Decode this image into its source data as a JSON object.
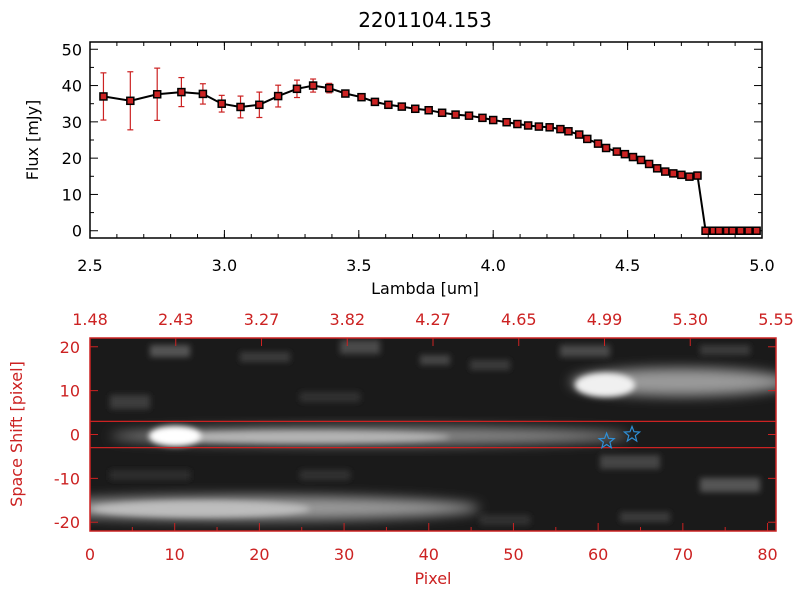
{
  "title": "2201104.153",
  "colors": {
    "red": "#cc2222",
    "axis": "#000000",
    "blue": "#2f8fd6"
  },
  "chart_data": [
    {
      "type": "line",
      "title": "2201104.153",
      "xlabel": "Lambda [um]",
      "ylabel": "Flux [mJy]",
      "xlim": [
        2.5,
        5.0
      ],
      "ylim": [
        -2,
        52
      ],
      "xticks": [
        "2.5",
        "3.0",
        "3.5",
        "4.0",
        "4.5",
        "5.0"
      ],
      "yticks": [
        "0",
        "10",
        "20",
        "30",
        "40",
        "50"
      ],
      "series": [
        {
          "name": "flux",
          "x": [
            2.55,
            2.65,
            2.75,
            2.84,
            2.92,
            2.99,
            3.06,
            3.13,
            3.2,
            3.27,
            3.33,
            3.39,
            3.45,
            3.51,
            3.56,
            3.61,
            3.66,
            3.71,
            3.76,
            3.81,
            3.86,
            3.91,
            3.96,
            4.0,
            4.05,
            4.09,
            4.13,
            4.17,
            4.21,
            4.25,
            4.28,
            4.32,
            4.35,
            4.39,
            4.42,
            4.46,
            4.49,
            4.52,
            4.55,
            4.58,
            4.61,
            4.64,
            4.67,
            4.7,
            4.73,
            4.76,
            4.79,
            4.82,
            4.84,
            4.87,
            4.89,
            4.92,
            4.95,
            4.98
          ],
          "values": [
            37.0,
            35.8,
            37.6,
            38.2,
            37.7,
            35.0,
            34.1,
            34.7,
            37.1,
            39.1,
            40.0,
            39.3,
            37.8,
            36.8,
            35.5,
            34.7,
            34.2,
            33.6,
            33.2,
            32.5,
            32.0,
            31.7,
            31.1,
            30.5,
            29.9,
            29.4,
            29.0,
            28.7,
            28.5,
            28.0,
            27.4,
            26.5,
            25.3,
            24.0,
            22.8,
            21.8,
            21.1,
            20.3,
            19.5,
            18.4,
            17.2,
            16.3,
            15.8,
            15.4,
            14.9,
            15.2,
            0.0,
            0.0,
            0.0,
            0.0,
            0.0,
            0.0,
            0.0,
            0.0
          ],
          "errors": [
            6.5,
            8.0,
            7.2,
            4.0,
            2.8,
            2.3,
            3.0,
            3.5,
            3.0,
            2.4,
            1.8,
            1.3,
            0.9,
            0.8,
            0.8,
            0.8,
            0.8,
            0.8,
            0.8,
            0.8,
            0.8,
            0.8,
            0.8,
            0.8,
            0.8,
            0.8,
            0.8,
            0.8,
            0.8,
            0.8,
            0.8,
            0.8,
            0.8,
            0.8,
            0.8,
            0.8,
            0.8,
            0.8,
            0.8,
            0.8,
            0.8,
            0.8,
            0.8,
            0.8,
            0.8,
            0.8,
            0.8,
            0.8,
            0.8,
            0.8,
            0.8,
            0.8,
            0.8,
            0.8
          ]
        }
      ]
    },
    {
      "type": "heatmap",
      "xlabel": "Pixel",
      "ylabel": "Space Shift [pixel]",
      "xlim": [
        0,
        81
      ],
      "ylim": [
        -22,
        22
      ],
      "xticks": [
        "0",
        "10",
        "20",
        "30",
        "40",
        "50",
        "60",
        "70",
        "80"
      ],
      "yticks": [
        "-20",
        "-10",
        "0",
        "10",
        "20"
      ],
      "top_axis_labels": [
        "1.48",
        "2.43",
        "3.27",
        "3.82",
        "4.27",
        "4.65",
        "4.99",
        "5.30",
        "5.55"
      ],
      "aperture_lines": [
        3,
        -3
      ],
      "stars": [
        [
          61,
          -1.5
        ],
        [
          64,
          0
        ]
      ]
    }
  ]
}
